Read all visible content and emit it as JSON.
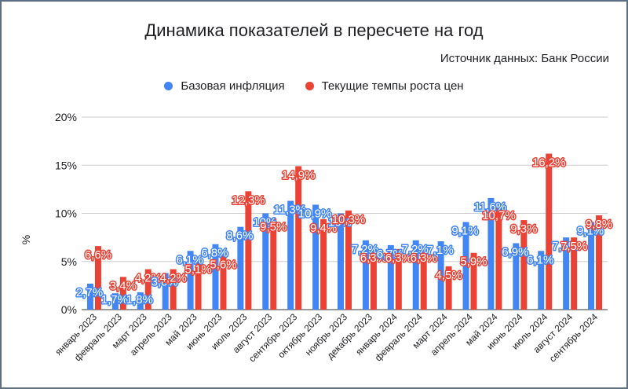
{
  "chart_data": {
    "type": "bar",
    "title": "Динамика показателей в пересчете на год",
    "subtitle": "Источник данных: Банк России",
    "xlabel": "",
    "ylabel": "%",
    "ylim": [
      0,
      20
    ],
    "yticks": [
      "0%",
      "5%",
      "10%",
      "15%",
      "20%"
    ],
    "ytick_values": [
      0,
      5,
      10,
      15,
      20
    ],
    "grid": true,
    "legend_position": "top",
    "categories": [
      "январь 2023",
      "февраль 2023",
      "март 2023",
      "апрель 2023",
      "май 2023",
      "июнь 2023",
      "июль 2023",
      "август 2023",
      "сентябрь 2023",
      "октябрь 2023",
      "ноябрь 2023",
      "декабрь 2023",
      "январь 2024",
      "февраль 2024",
      "март 2024",
      "апрель 2024",
      "май 2024",
      "июнь 2024",
      "июль 2024",
      "август 2024",
      "сентябрь 2024"
    ],
    "series": [
      {
        "name": "Базовая инфляция",
        "color": "#4285f4",
        "values": [
          2.7,
          1.7,
          1.8,
          3.8,
          6.1,
          6.8,
          8.6,
          10.0,
          11.3,
          10.9,
          10.0,
          7.2,
          6.7,
          7.2,
          7.1,
          9.1,
          11.6,
          6.9,
          6.1,
          7.5,
          9.1
        ],
        "labels": [
          "2,7%",
          "1,7%",
          "1,8%",
          "3,8%",
          "6,1%",
          "6,8%",
          "8,6%",
          "10%",
          "11,3%",
          "10,9%",
          "10%",
          "7,2%",
          "6,7%",
          "7,2%",
          "7,1%",
          "9,1%",
          "11,6%",
          "6,9%",
          "6,1%",
          "7,5%",
          "9,1%"
        ]
      },
      {
        "name": "Текущие темпы роста цен",
        "color": "#ea4335",
        "values": [
          6.6,
          3.4,
          4.2,
          4.2,
          5.1,
          5.6,
          12.3,
          9.5,
          14.9,
          9.4,
          10.3,
          6.3,
          6.3,
          6.3,
          4.5,
          5.9,
          10.7,
          9.3,
          16.2,
          7.5,
          9.8
        ],
        "labels": [
          "6,6%",
          "3,4%",
          "4,2%",
          "4,2%",
          "5,1%",
          "5,6%",
          "12,3%",
          "9,5%",
          "14,9%",
          "9,4%",
          "10,3%",
          "6,3%",
          "6,3%",
          "6,3%",
          "4,5%",
          "5,9%",
          "10,7%",
          "9,3%",
          "16,2%",
          "7,5%",
          "9,8%"
        ]
      }
    ]
  }
}
